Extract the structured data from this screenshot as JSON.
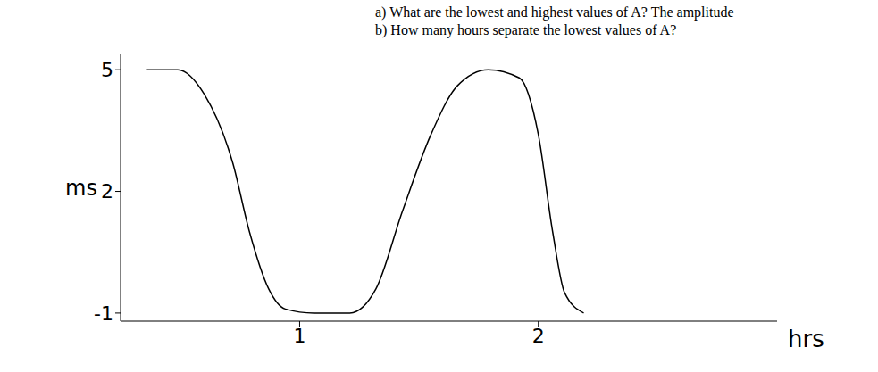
{
  "chart_data": {
    "type": "line",
    "annotations": [
      "a) What are the lowest and highest values of A?  The amplitude",
      "b) How many hours separate the lowest values of A?"
    ],
    "x_label": "hrs",
    "y_label": "ms",
    "x": [
      0.36,
      0.49,
      0.6,
      0.72,
      0.79,
      0.87,
      0.94,
      1.06,
      1.21,
      1.32,
      1.43,
      1.55,
      1.66,
      1.79,
      1.92,
      2.0,
      2.06,
      2.11,
      2.19
    ],
    "values": [
      5.0,
      5.0,
      4.4,
      2.7,
      1.0,
      -0.4,
      -0.9,
      -1.0,
      -1.0,
      -0.4,
      1.5,
      3.4,
      4.6,
      5.0,
      4.8,
      3.4,
      1.0,
      -0.5,
      -1.0
    ],
    "color": "#000000",
    "xlim": [
      0.25,
      3
    ],
    "xticks": [
      1,
      2
    ],
    "ylim": [
      -1.2,
      5.4
    ],
    "yticks": [
      -1,
      2,
      5
    ],
    "grid": false
  }
}
